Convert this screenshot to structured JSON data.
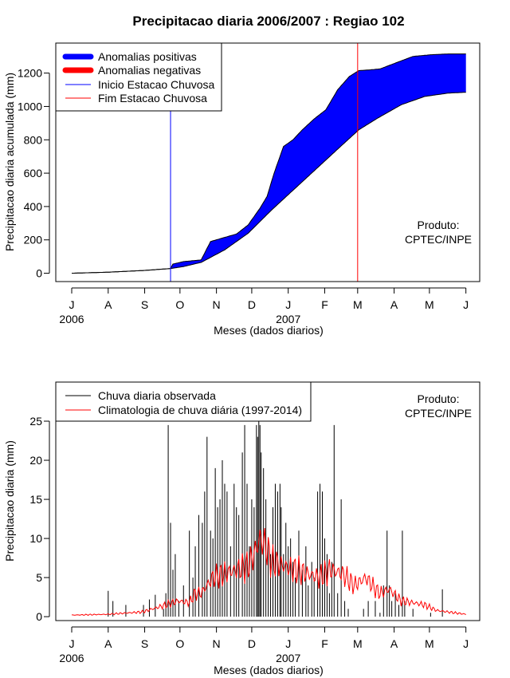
{
  "chart_data": [
    {
      "type": "area",
      "title": "Precipitacao diaria 2006/2007 : Regiao 102",
      "xlabel": "Meses (dados diarios)",
      "ylabel": "Precipitacao diaria acumulada (mm)",
      "x_ticks": [
        "J",
        "A",
        "S",
        "O",
        "N",
        "D",
        "J",
        "F",
        "M",
        "A",
        "M",
        "J"
      ],
      "year_labels": [
        "2006",
        "2007"
      ],
      "ylim": [
        -50,
        1380
      ],
      "y_ticks": [
        0,
        200,
        400,
        600,
        800,
        1000,
        1200
      ],
      "legend": {
        "position": "top-left",
        "entries": [
          "Anomalias positivas",
          "Anomalias negativas",
          "Inicio Estacao Chuvosa",
          "Fim Estacao Chuvosa"
        ]
      },
      "annotation": [
        "Produto:",
        "CPTEC/INPE"
      ],
      "onset_day": 84,
      "end_day": 243,
      "upper_series": [
        [
          0,
          0
        ],
        [
          30,
          6
        ],
        [
          60,
          16
        ],
        [
          84,
          28
        ],
        [
          86,
          55
        ],
        [
          95,
          70
        ],
        [
          110,
          80
        ],
        [
          118,
          190
        ],
        [
          130,
          215
        ],
        [
          140,
          235
        ],
        [
          150,
          290
        ],
        [
          160,
          390
        ],
        [
          166,
          460
        ],
        [
          172,
          600
        ],
        [
          180,
          760
        ],
        [
          188,
          800
        ],
        [
          196,
          860
        ],
        [
          206,
          925
        ],
        [
          216,
          980
        ],
        [
          226,
          1100
        ],
        [
          236,
          1180
        ],
        [
          244,
          1215
        ],
        [
          254,
          1220
        ],
        [
          262,
          1225
        ],
        [
          275,
          1260
        ],
        [
          290,
          1300
        ],
        [
          305,
          1310
        ],
        [
          320,
          1315
        ],
        [
          335,
          1315
        ]
      ],
      "lower_series": [
        [
          0,
          0
        ],
        [
          30,
          6
        ],
        [
          60,
          16
        ],
        [
          84,
          28
        ],
        [
          95,
          40
        ],
        [
          110,
          65
        ],
        [
          130,
          140
        ],
        [
          150,
          240
        ],
        [
          170,
          380
        ],
        [
          190,
          510
        ],
        [
          210,
          640
        ],
        [
          230,
          770
        ],
        [
          244,
          860
        ],
        [
          260,
          930
        ],
        [
          280,
          1010
        ],
        [
          300,
          1060
        ],
        [
          320,
          1080
        ],
        [
          335,
          1085
        ]
      ],
      "colors": {
        "positive": "#0000ff",
        "negative": "#ff0000",
        "onset": "#0000ff",
        "end": "#ff0000"
      }
    },
    {
      "type": "bar",
      "xlabel": "Meses (dados diarios)",
      "ylabel": "Precipitacao diaria (mm)",
      "x_ticks": [
        "J",
        "A",
        "S",
        "O",
        "N",
        "D",
        "J",
        "F",
        "M",
        "A",
        "M",
        "J"
      ],
      "year_labels": [
        "2006",
        "2007"
      ],
      "ylim": [
        -0.5,
        30
      ],
      "y_ticks": [
        0,
        5,
        10,
        15,
        20,
        25
      ],
      "legend": {
        "position": "top-left",
        "entries": [
          "Chuva diaria observada",
          "Climatologia de chuva diária (1997-2014)"
        ]
      },
      "annotation": [
        "Produto:",
        "CPTEC/INPE"
      ],
      "observed_peaks": [
        [
          31,
          3.3
        ],
        [
          35,
          2
        ],
        [
          46,
          1.5
        ],
        [
          61,
          1.5
        ],
        [
          66,
          2.2
        ],
        [
          71,
          2.8
        ],
        [
          78,
          1
        ],
        [
          80,
          3
        ],
        [
          82,
          24.5
        ],
        [
          84,
          12
        ],
        [
          86,
          6
        ],
        [
          88,
          8
        ],
        [
          91,
          2
        ],
        [
          95,
          4
        ],
        [
          100,
          11
        ],
        [
          103,
          5
        ],
        [
          105,
          9
        ],
        [
          108,
          13
        ],
        [
          111,
          12
        ],
        [
          113,
          16
        ],
        [
          115,
          23
        ],
        [
          118,
          11
        ],
        [
          120,
          10
        ],
        [
          122,
          19
        ],
        [
          124,
          14
        ],
        [
          126,
          15
        ],
        [
          128,
          20
        ],
        [
          130,
          17
        ],
        [
          132,
          16
        ],
        [
          135,
          9
        ],
        [
          138,
          17
        ],
        [
          140,
          14
        ],
        [
          142,
          13
        ],
        [
          145,
          21
        ],
        [
          147,
          24.5
        ],
        [
          149,
          17
        ],
        [
          151,
          9
        ],
        [
          153,
          15
        ],
        [
          155,
          14
        ],
        [
          157,
          24.5
        ],
        [
          158,
          23
        ],
        [
          159,
          25
        ],
        [
          160,
          24.5
        ],
        [
          161,
          21
        ],
        [
          163,
          19
        ],
        [
          165,
          15
        ],
        [
          167,
          10
        ],
        [
          169,
          8
        ],
        [
          171,
          14
        ],
        [
          173,
          17
        ],
        [
          175,
          16
        ],
        [
          177,
          17
        ],
        [
          178,
          14
        ],
        [
          180,
          8
        ],
        [
          182,
          12
        ],
        [
          184,
          9
        ],
        [
          186,
          10
        ],
        [
          188,
          7
        ],
        [
          190,
          5
        ],
        [
          193,
          11
        ],
        [
          196,
          6
        ],
        [
          199,
          9
        ],
        [
          201,
          4
        ],
        [
          204,
          7
        ],
        [
          206,
          5
        ],
        [
          209,
          16
        ],
        [
          211,
          17
        ],
        [
          213,
          16
        ],
        [
          215,
          10
        ],
        [
          217,
          8
        ],
        [
          219,
          3
        ],
        [
          221,
          7
        ],
        [
          223,
          24.5
        ],
        [
          226,
          3
        ],
        [
          229,
          15
        ],
        [
          232,
          2
        ],
        [
          235,
          1
        ],
        [
          248,
          1
        ],
        [
          252,
          2
        ],
        [
          258,
          2
        ],
        [
          262,
          0.5
        ],
        [
          265,
          4
        ],
        [
          268,
          11
        ],
        [
          270,
          4
        ],
        [
          272,
          2
        ],
        [
          275,
          3
        ],
        [
          278,
          1.5
        ],
        [
          281,
          11
        ],
        [
          283,
          2
        ],
        [
          290,
          1
        ],
        [
          305,
          0.5
        ],
        [
          315,
          3.5
        ]
      ],
      "climatology_nodes": [
        [
          0,
          0.2
        ],
        [
          30,
          0.3
        ],
        [
          60,
          0.6
        ],
        [
          80,
          1.5
        ],
        [
          90,
          2
        ],
        [
          100,
          1.8
        ],
        [
          105,
          3
        ],
        [
          110,
          3
        ],
        [
          115,
          4
        ],
        [
          120,
          5
        ],
        [
          130,
          5.5
        ],
        [
          140,
          6
        ],
        [
          150,
          6.5
        ],
        [
          155,
          8
        ],
        [
          160,
          10
        ],
        [
          165,
          9
        ],
        [
          170,
          7
        ],
        [
          180,
          6.5
        ],
        [
          190,
          6
        ],
        [
          200,
          5.5
        ],
        [
          210,
          5
        ],
        [
          220,
          6
        ],
        [
          230,
          5.5
        ],
        [
          240,
          4
        ],
        [
          250,
          5
        ],
        [
          258,
          3.5
        ],
        [
          262,
          3
        ],
        [
          270,
          3.5
        ],
        [
          280,
          2
        ],
        [
          290,
          1.8
        ],
        [
          300,
          1.5
        ],
        [
          310,
          0.8
        ],
        [
          320,
          0.6
        ],
        [
          335,
          0.3
        ]
      ],
      "colors": {
        "observed": "#000000",
        "climatology": "#ff0000"
      }
    }
  ]
}
